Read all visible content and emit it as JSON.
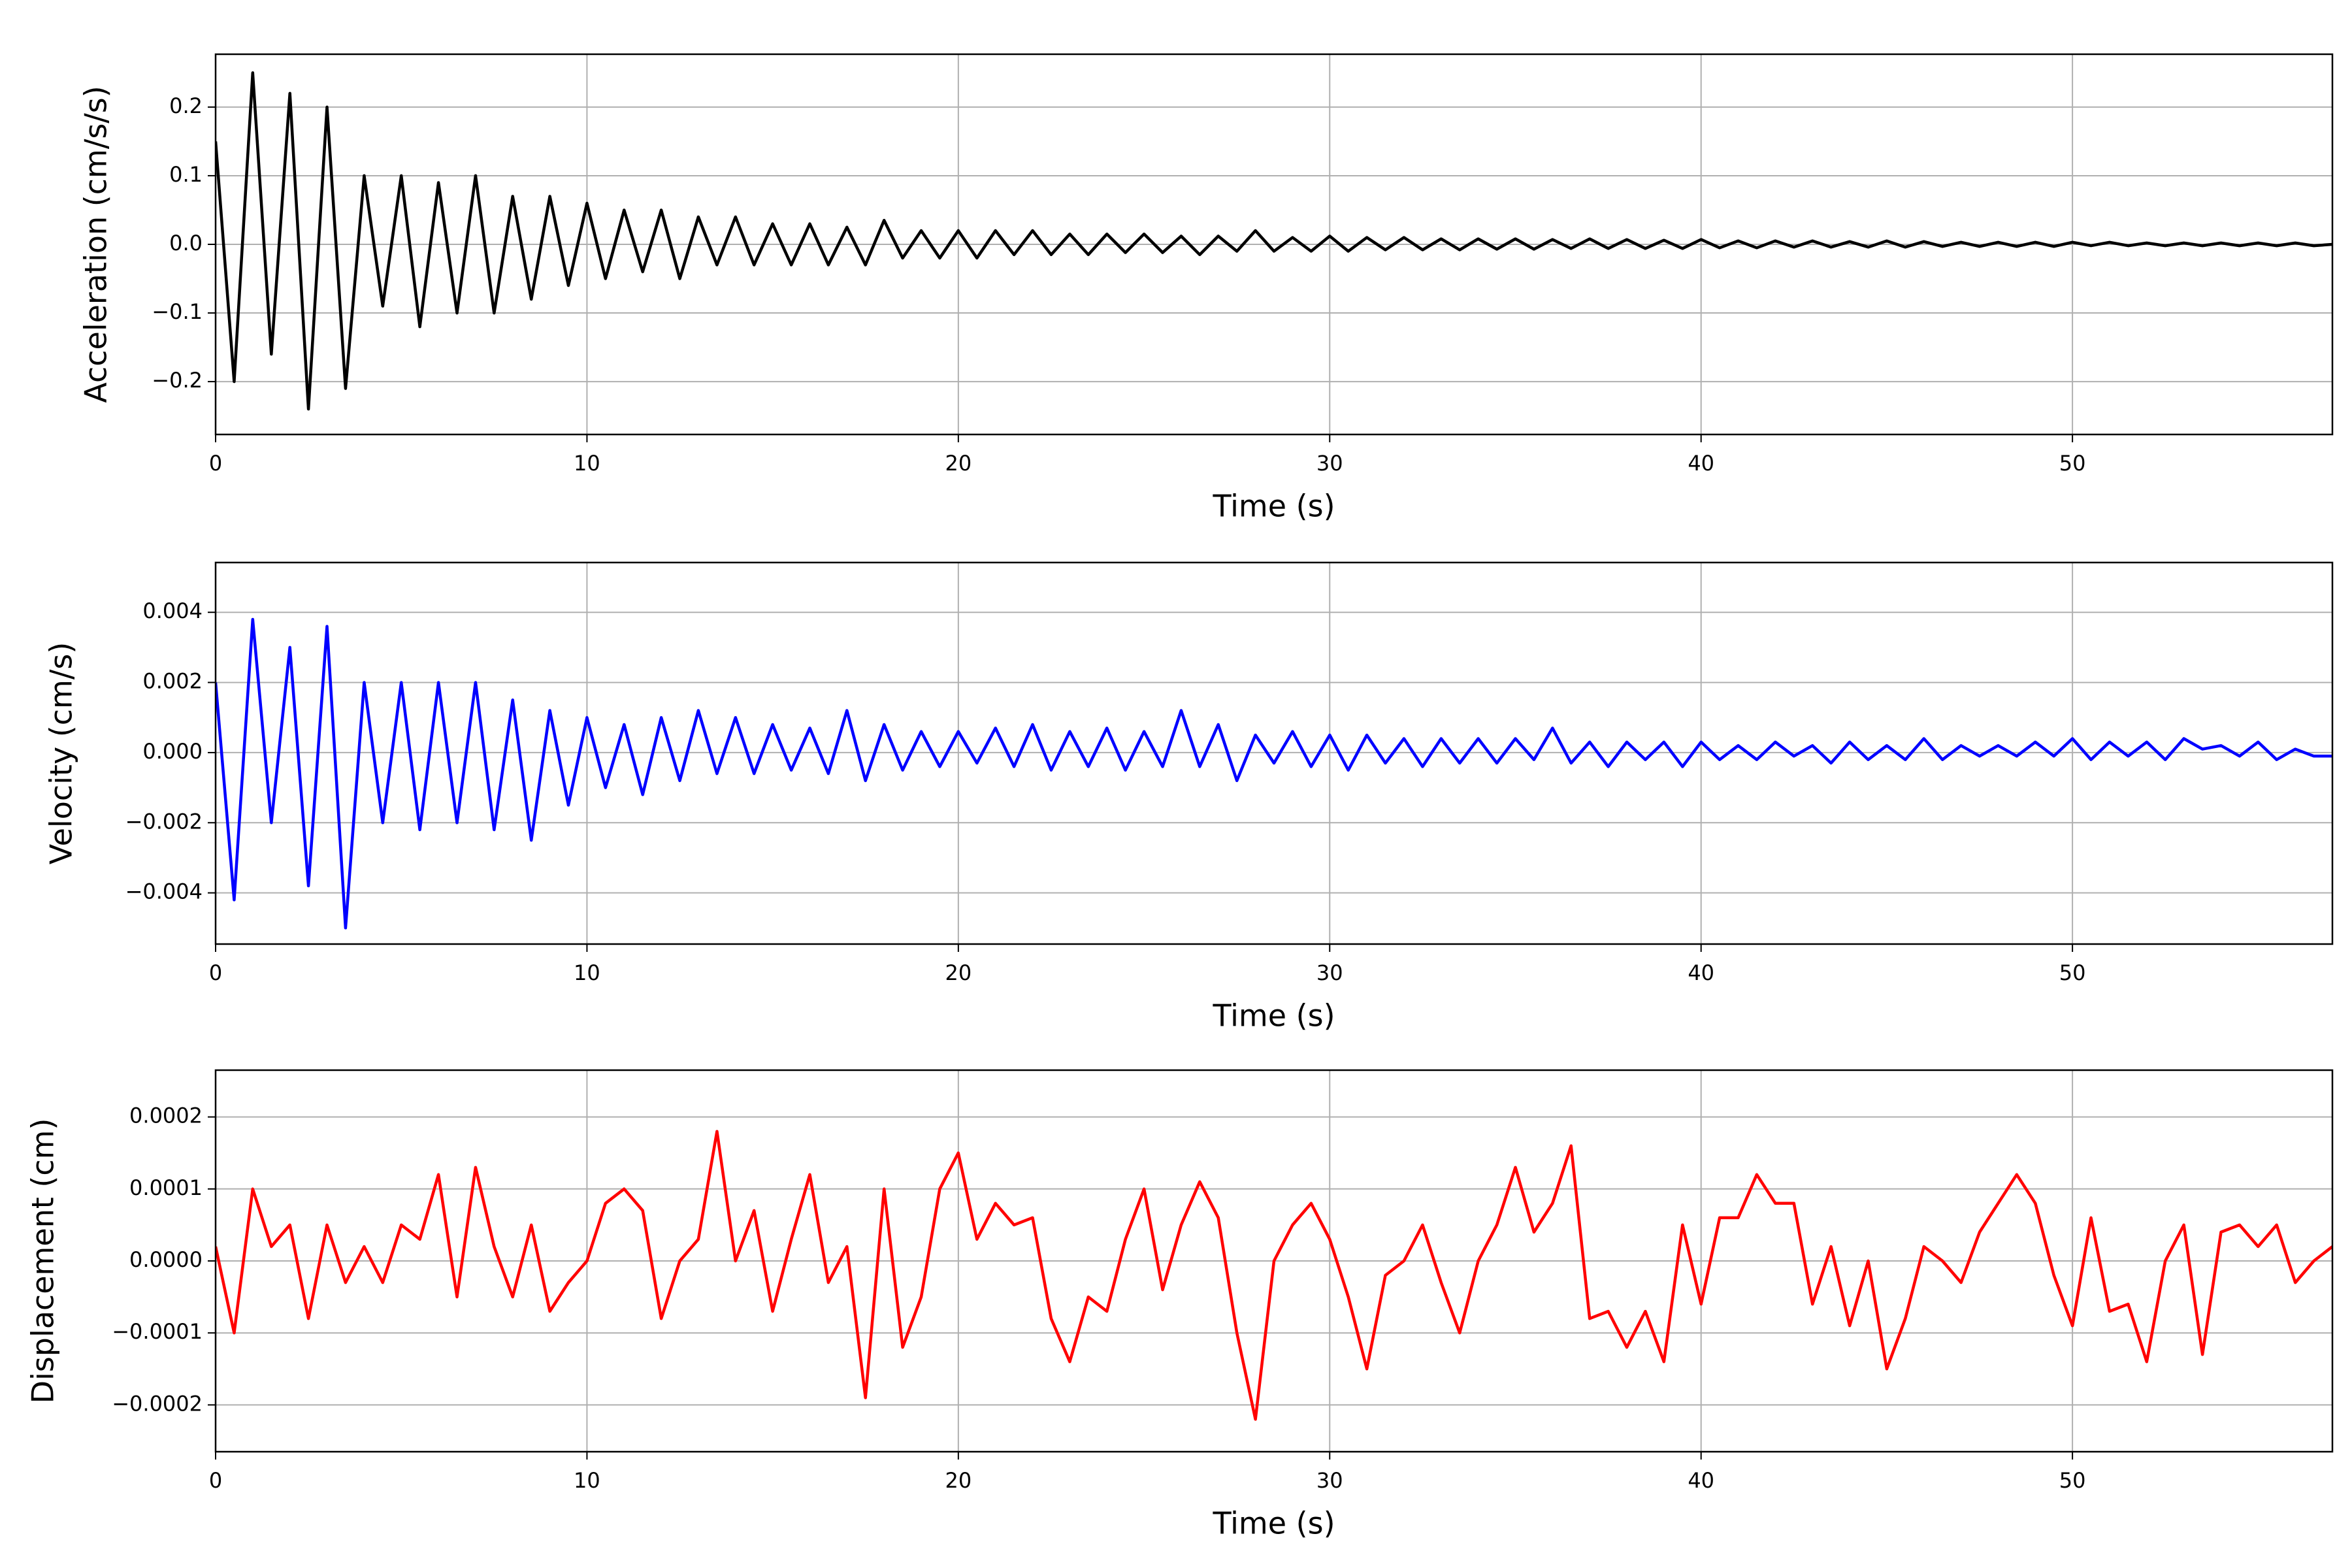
{
  "chart_data": [
    {
      "type": "line",
      "ylabel": "Acceleration (cm/s/s)",
      "xlabel": "Time (s)",
      "color": "#000000",
      "grid": true,
      "xlim": [
        0,
        57
      ],
      "xticks": [
        0,
        10,
        20,
        30,
        40,
        50
      ],
      "ylim": [
        -0.277,
        0.277
      ],
      "yticks": [
        {
          "value": -0.2,
          "label": "−0.2"
        },
        {
          "value": -0.1,
          "label": "−0.1"
        },
        {
          "value": 0,
          "label": "0.0"
        },
        {
          "value": 0.1,
          "label": "0.1"
        },
        {
          "value": 0.2,
          "label": "0.2"
        }
      ],
      "x": [
        0,
        0.5,
        1,
        1.5,
        2,
        2.5,
        3,
        3.5,
        4,
        4.5,
        5,
        5.5,
        6,
        6.5,
        7,
        7.5,
        8,
        8.5,
        9,
        9.5,
        10,
        10.5,
        11,
        11.5,
        12,
        12.5,
        13,
        13.5,
        14,
        14.5,
        15,
        15.5,
        16,
        16.5,
        17,
        17.5,
        18,
        18.5,
        19,
        19.5,
        20,
        20.5,
        21,
        21.5,
        22,
        22.5,
        23,
        23.5,
        24,
        24.5,
        25,
        25.5,
        26,
        26.5,
        27,
        27.5,
        28,
        28.5,
        29,
        29.5,
        30,
        30.5,
        31,
        31.5,
        32,
        32.5,
        33,
        33.5,
        34,
        34.5,
        35,
        35.5,
        36,
        36.5,
        37,
        37.5,
        38,
        38.5,
        39,
        39.5,
        40,
        40.5,
        41,
        41.5,
        42,
        42.5,
        43,
        43.5,
        44,
        44.5,
        45,
        45.5,
        46,
        46.5,
        47,
        47.5,
        48,
        48.5,
        49,
        49.5,
        50,
        50.5,
        51,
        51.5,
        52,
        52.5,
        53,
        53.5,
        54,
        54.5,
        55,
        55.5,
        56,
        56.5,
        57
      ],
      "values": [
        0.15,
        -0.2,
        0.25,
        -0.16,
        0.22,
        -0.24,
        0.2,
        -0.21,
        0.1,
        -0.09,
        0.1,
        -0.12,
        0.09,
        -0.1,
        0.1,
        -0.1,
        0.07,
        -0.08,
        0.07,
        -0.06,
        0.06,
        -0.05,
        0.05,
        -0.04,
        0.05,
        -0.05,
        0.04,
        -0.03,
        0.04,
        -0.03,
        0.03,
        -0.03,
        0.03,
        -0.03,
        0.025,
        -0.03,
        0.035,
        -0.02,
        0.02,
        -0.02,
        0.02,
        -0.02,
        0.02,
        -0.015,
        0.02,
        -0.015,
        0.015,
        -0.015,
        0.015,
        -0.012,
        0.015,
        -0.012,
        0.012,
        -0.015,
        0.012,
        -0.01,
        0.02,
        -0.01,
        0.01,
        -0.01,
        0.012,
        -0.01,
        0.01,
        -0.008,
        0.01,
        -0.008,
        0.008,
        -0.008,
        0.008,
        -0.007,
        0.008,
        -0.007,
        0.007,
        -0.006,
        0.008,
        -0.006,
        0.007,
        -0.006,
        0.006,
        -0.006,
        0.007,
        -0.005,
        0.005,
        -0.005,
        0.005,
        -0.004,
        0.005,
        -0.004,
        0.004,
        -0.004,
        0.005,
        -0.004,
        0.004,
        -0.003,
        0.003,
        -0.003,
        0.003,
        -0.003,
        0.003,
        -0.003,
        0.003,
        -0.002,
        0.003,
        -0.002,
        0.002,
        -0.002,
        0.002,
        -0.002,
        0.002,
        -0.002,
        0.002,
        -0.002,
        0.002,
        -0.002,
        0
      ]
    },
    {
      "type": "line",
      "ylabel": "Velocity (cm/s)",
      "xlabel": "Time (s)",
      "color": "#0000ff",
      "grid": true,
      "xlim": [
        0,
        57
      ],
      "xticks": [
        0,
        10,
        20,
        30,
        40,
        50
      ],
      "ylim": [
        -0.00546,
        0.00542
      ],
      "yticks": [
        {
          "value": -0.004,
          "label": "−0.004"
        },
        {
          "value": -0.002,
          "label": "−0.002"
        },
        {
          "value": 0,
          "label": "0.000"
        },
        {
          "value": 0.002,
          "label": "0.002"
        },
        {
          "value": 0.004,
          "label": "0.004"
        }
      ],
      "x": [
        0,
        0.5,
        1,
        1.5,
        2,
        2.5,
        3,
        3.5,
        4,
        4.5,
        5,
        5.5,
        6,
        6.5,
        7,
        7.5,
        8,
        8.5,
        9,
        9.5,
        10,
        10.5,
        11,
        11.5,
        12,
        12.5,
        13,
        13.5,
        14,
        14.5,
        15,
        15.5,
        16,
        16.5,
        17,
        17.5,
        18,
        18.5,
        19,
        19.5,
        20,
        20.5,
        21,
        21.5,
        22,
        22.5,
        23,
        23.5,
        24,
        24.5,
        25,
        25.5,
        26,
        26.5,
        27,
        27.5,
        28,
        28.5,
        29,
        29.5,
        30,
        30.5,
        31,
        31.5,
        32,
        32.5,
        33,
        33.5,
        34,
        34.5,
        35,
        35.5,
        36,
        36.5,
        37,
        37.5,
        38,
        38.5,
        39,
        39.5,
        40,
        40.5,
        41,
        41.5,
        42,
        42.5,
        43,
        43.5,
        44,
        44.5,
        45,
        45.5,
        46,
        46.5,
        47,
        47.5,
        48,
        48.5,
        49,
        49.5,
        50,
        50.5,
        51,
        51.5,
        52,
        52.5,
        53,
        53.5,
        54,
        54.5,
        55,
        55.5,
        56,
        56.5,
        57
      ],
      "values": [
        0.002,
        -0.0042,
        0.0038,
        -0.002,
        0.003,
        -0.0038,
        0.0036,
        -0.005,
        0.002,
        -0.002,
        0.002,
        -0.0022,
        0.002,
        -0.002,
        0.002,
        -0.0022,
        0.0015,
        -0.0025,
        0.0012,
        -0.0015,
        0.001,
        -0.001,
        0.0008,
        -0.0012,
        0.001,
        -0.0008,
        0.0012,
        -0.0006,
        0.001,
        -0.0006,
        0.0008,
        -0.0005,
        0.0007,
        -0.0006,
        0.0012,
        -0.0008,
        0.0008,
        -0.0005,
        0.0006,
        -0.0004,
        0.0006,
        -0.0003,
        0.0007,
        -0.0004,
        0.0008,
        -0.0005,
        0.0006,
        -0.0004,
        0.0007,
        -0.0005,
        0.0006,
        -0.0004,
        0.0012,
        -0.0004,
        0.0008,
        -0.0008,
        0.0005,
        -0.0003,
        0.0006,
        -0.0004,
        0.0005,
        -0.0005,
        0.0005,
        -0.0003,
        0.0004,
        -0.0004,
        0.0004,
        -0.0003,
        0.0004,
        -0.0003,
        0.0004,
        -0.0002,
        0.0007,
        -0.0003,
        0.0003,
        -0.0004,
        0.0003,
        -0.0002,
        0.0003,
        -0.0004,
        0.0003,
        -0.0002,
        0.0002,
        -0.0002,
        0.0003,
        -0.0001,
        0.0002,
        -0.0003,
        0.0003,
        -0.0002,
        0.0002,
        -0.0002,
        0.0004,
        -0.0002,
        0.0002,
        -0.0001,
        0.0002,
        -0.0001,
        0.0003,
        -0.0001,
        0.0004,
        -0.0002,
        0.0003,
        -0.0001,
        0.0003,
        -0.0002,
        0.0004,
        0.0001,
        0.0002,
        -0.0001,
        0.0003,
        -0.0002,
        0.0001,
        -0.0001,
        -0.0001
      ]
    },
    {
      "type": "line",
      "ylabel": "Displacement (cm)",
      "xlabel": "Time (s)",
      "color": "#ff0000",
      "grid": true,
      "xlim": [
        0,
        57
      ],
      "xticks": [
        0,
        10,
        20,
        30,
        40,
        50
      ],
      "ylim": [
        -0.000265,
        0.000265
      ],
      "yticks": [
        {
          "value": -0.0002,
          "label": "−0.0002"
        },
        {
          "value": -0.0001,
          "label": "−0.0001"
        },
        {
          "value": 0,
          "label": "0.0000"
        },
        {
          "value": 0.0001,
          "label": "0.0001"
        },
        {
          "value": 0.0002,
          "label": "0.0002"
        }
      ],
      "x": [
        0,
        0.5,
        1,
        1.5,
        2,
        2.5,
        3,
        3.5,
        4,
        4.5,
        5,
        5.5,
        6,
        6.5,
        7,
        7.5,
        8,
        8.5,
        9,
        9.5,
        10,
        10.5,
        11,
        11.5,
        12,
        12.5,
        13,
        13.5,
        14,
        14.5,
        15,
        15.5,
        16,
        16.5,
        17,
        17.5,
        18,
        18.5,
        19,
        19.5,
        20,
        20.5,
        21,
        21.5,
        22,
        22.5,
        23,
        23.5,
        24,
        24.5,
        25,
        25.5,
        26,
        26.5,
        27,
        27.5,
        28,
        28.5,
        29,
        29.5,
        30,
        30.5,
        31,
        31.5,
        32,
        32.5,
        33,
        33.5,
        34,
        34.5,
        35,
        35.5,
        36,
        36.5,
        37,
        37.5,
        38,
        38.5,
        39,
        39.5,
        40,
        40.5,
        41,
        41.5,
        42,
        42.5,
        43,
        43.5,
        44,
        44.5,
        45,
        45.5,
        46,
        46.5,
        47,
        47.5,
        48,
        48.5,
        49,
        49.5,
        50,
        50.5,
        51,
        51.5,
        52,
        52.5,
        53,
        53.5,
        54,
        54.5,
        55,
        55.5,
        56,
        56.5,
        57
      ],
      "values": [
        2e-05,
        -0.0001,
        0.0001,
        2e-05,
        5e-05,
        -8e-05,
        5e-05,
        -3e-05,
        2e-05,
        -3e-05,
        5e-05,
        3e-05,
        0.00012,
        -5e-05,
        0.00013,
        2e-05,
        -5e-05,
        5e-05,
        -7e-05,
        -3e-05,
        0,
        8e-05,
        0.0001,
        7e-05,
        -8e-05,
        0,
        3e-05,
        0.00018,
        0,
        7e-05,
        -7e-05,
        3e-05,
        0.00012,
        -3e-05,
        2e-05,
        -0.00019,
        0.0001,
        -0.00012,
        -5e-05,
        0.0001,
        0.00015,
        3e-05,
        8e-05,
        5e-05,
        6e-05,
        -8e-05,
        -0.00014,
        -5e-05,
        -7e-05,
        3e-05,
        0.0001,
        -4e-05,
        5e-05,
        0.00011,
        6e-05,
        -0.0001,
        -0.00022,
        0,
        5e-05,
        8e-05,
        3e-05,
        -5e-05,
        -0.00015,
        -2e-05,
        0,
        5e-05,
        -3e-05,
        -0.0001,
        0,
        5e-05,
        0.00013,
        4e-05,
        8e-05,
        0.00016,
        -8e-05,
        -7e-05,
        -0.00012,
        -7e-05,
        -0.00014,
        5e-05,
        -6e-05,
        6e-05,
        6e-05,
        0.00012,
        8e-05,
        8e-05,
        -6e-05,
        2e-05,
        -9e-05,
        0,
        -0.00015,
        -8e-05,
        2e-05,
        0,
        -3e-05,
        4e-05,
        8e-05,
        0.00012,
        8e-05,
        -2e-05,
        -9e-05,
        6e-05,
        -7e-05,
        -6e-05,
        -0.00014,
        0,
        5e-05,
        -0.00013,
        4e-05,
        5e-05,
        2e-05,
        5e-05,
        -3e-05,
        0,
        2e-05
      ]
    }
  ]
}
